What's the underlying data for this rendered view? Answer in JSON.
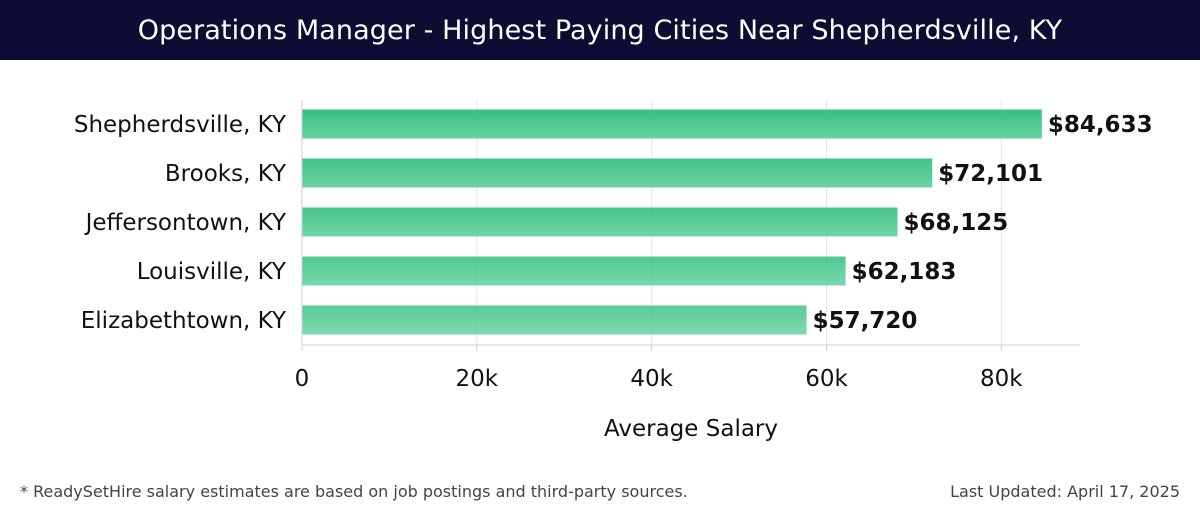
{
  "title": "Operations Manager - Highest Paying Cities Near Shepherdsville, KY",
  "footer": {
    "note": "* ReadySetHire salary estimates are based on job postings and third-party sources.",
    "updated": "Last Updated: April 17, 2025"
  },
  "colors": {
    "header_bg": "#0d0c33",
    "bar_top": "#2ebd7a",
    "bar_bottom": "#5ccf9c",
    "grid": "#e6e6e6"
  },
  "chart_data": {
    "type": "bar",
    "orientation": "horizontal",
    "categories": [
      "Shepherdsville, KY",
      "Brooks, KY",
      "Jeffersontown, KY",
      "Louisville, KY",
      "Elizabethtown, KY"
    ],
    "values": [
      84633,
      72101,
      68125,
      62183,
      57720
    ],
    "value_labels": [
      "$84,633",
      "$72,101",
      "$68,125",
      "$62,183",
      "$57,720"
    ],
    "xlabel": "Average Salary",
    "ylabel": "",
    "xlim": [
      0,
      89000
    ],
    "xticks": [
      0,
      20000,
      40000,
      60000,
      80000
    ],
    "xtick_labels": [
      "0",
      "20k",
      "40k",
      "60k",
      "80k"
    ],
    "grid": true
  }
}
